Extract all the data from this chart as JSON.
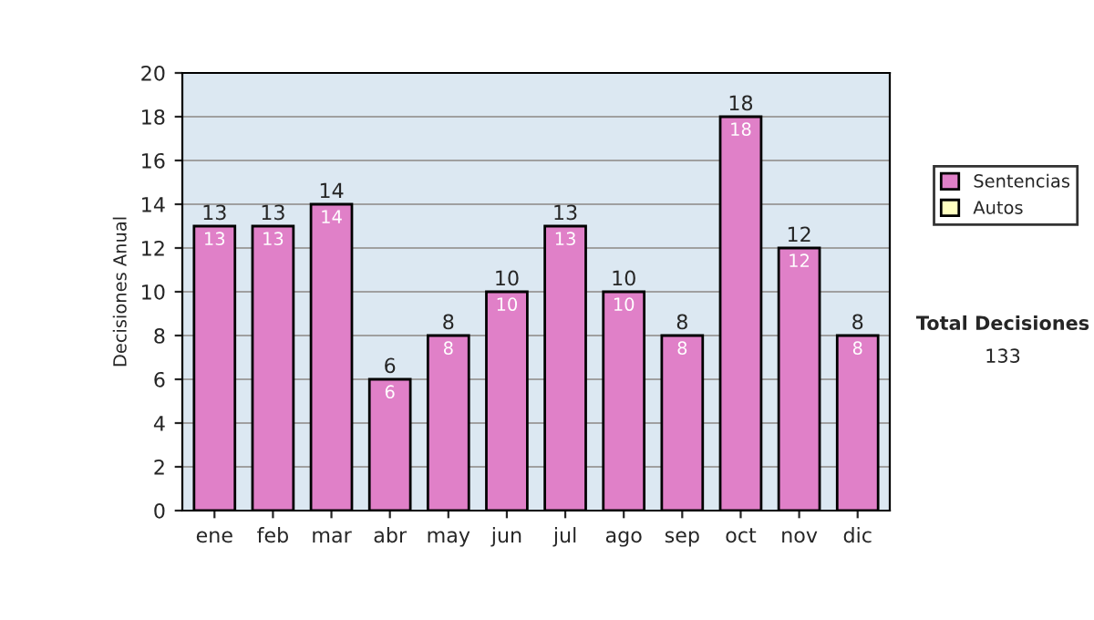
{
  "chart_data": {
    "type": "bar",
    "stacked": true,
    "ylabel": "Decisiones Anual",
    "categories": [
      "ene",
      "feb",
      "mar",
      "abr",
      "may",
      "jun",
      "jul",
      "ago",
      "sep",
      "oct",
      "nov",
      "dic"
    ],
    "series": [
      {
        "name": "Sentencias",
        "color": "#e080c8",
        "values": [
          13,
          13,
          14,
          6,
          8,
          10,
          13,
          10,
          8,
          18,
          12,
          8
        ],
        "value_labels": [
          "13",
          "13",
          "14",
          "6",
          "8",
          "10",
          "13",
          "10",
          "8",
          "18",
          "12",
          "8"
        ]
      },
      {
        "name": "Autos",
        "color": "#ffffc0",
        "values": [
          0,
          0,
          0,
          0,
          0,
          0,
          0,
          0,
          0,
          0,
          0,
          0
        ]
      }
    ],
    "totals": [
      "13",
      "13",
      "14",
      "6",
      "8",
      "10",
      "13",
      "10",
      "8",
      "18",
      "12",
      "8"
    ],
    "ylim": [
      0,
      20
    ],
    "yticks": [
      0,
      2,
      4,
      6,
      8,
      10,
      12,
      14,
      16,
      18,
      20
    ],
    "grid": "y",
    "legend": "right",
    "annotations": [
      "Total Decisiones",
      "133"
    ]
  }
}
